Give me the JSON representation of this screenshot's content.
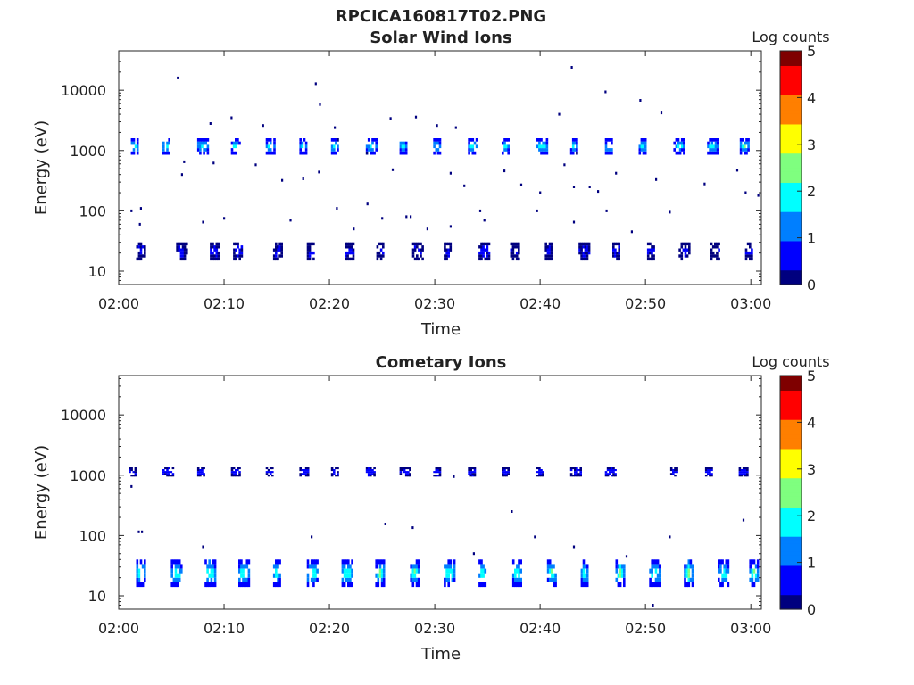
{
  "figure_title": "RPCICA160817T02.PNG",
  "colormap": [
    "#00007f",
    "#0000ff",
    "#007fff",
    "#00ffff",
    "#7fff7f",
    "#ffff00",
    "#ff7f00",
    "#ff0000",
    "#7f0000"
  ],
  "chart_data": [
    {
      "type": "heatmap",
      "title": "Solar Wind Ions",
      "xlabel": "Time",
      "ylabel": "Energy (eV)",
      "y_scale": "log",
      "xlim": [
        "02:00",
        "03:01"
      ],
      "ylim": [
        6,
        45000
      ],
      "x_ticks": [
        "02:00",
        "02:10",
        "02:20",
        "02:30",
        "02:40",
        "02:50",
        "03:00"
      ],
      "y_ticks": [
        "10",
        "100",
        "1000",
        "10000"
      ],
      "colorbar": {
        "label": "Log counts",
        "ticks": [
          "0",
          "1",
          "2",
          "3",
          "4",
          "5"
        ],
        "range": [
          0,
          5
        ]
      },
      "main_band": {
        "energy_range_eV": [
          850,
          1600
        ],
        "times": [
          "02:01.5",
          "02:04.5",
          "02:07.8",
          "02:11.0",
          "02:14.3",
          "02:17.5",
          "02:20.5",
          "02:23.8",
          "02:27.0",
          "02:30.2",
          "02:33.5",
          "02:36.7",
          "02:40.0",
          "02:43.2",
          "02:46.5",
          "02:49.7",
          "02:53.0",
          "02:56.2",
          "02:59.3"
        ],
        "peak_log_counts": [
          2.2,
          2.1,
          2.2,
          2.0,
          2.0,
          1.9,
          2.0,
          2.0,
          2.2,
          2.1,
          2.0,
          2.0,
          2.1,
          2.0,
          2.1,
          2.3,
          2.0,
          2.1,
          2.2
        ]
      },
      "low_band": {
        "energy_range_eV": [
          15,
          30
        ],
        "times": [
          "02:02.0",
          "02:05.8",
          "02:09.0",
          "02:11.2",
          "02:15.0",
          "02:18.2",
          "02:21.8",
          "02:24.8",
          "02:28.2",
          "02:31.2",
          "02:34.5",
          "02:37.5",
          "02:40.8",
          "02:44.0",
          "02:47.2",
          "02:50.5",
          "02:53.5",
          "02:56.5",
          "02:59.8"
        ],
        "peak_log_counts": [
          0.5,
          0.5,
          0.4,
          0.6,
          0.5,
          0.4,
          0.5,
          0.5,
          0.5,
          0.5,
          0.5,
          0.4,
          0.5,
          0.5,
          0.5,
          0.5,
          0.5,
          0.4,
          0.5
        ]
      },
      "scatter_points": [
        {
          "t": "02:05.6",
          "e": 16000
        },
        {
          "t": "02:18.7",
          "e": 12800
        },
        {
          "t": "02:19.1",
          "e": 5800
        },
        {
          "t": "02:43.0",
          "e": 24000
        },
        {
          "t": "02:46.2",
          "e": 9400
        },
        {
          "t": "02:49.5",
          "e": 6800
        },
        {
          "t": "02:51.5",
          "e": 4200
        },
        {
          "t": "02:41.8",
          "e": 4000
        },
        {
          "t": "02:10.7",
          "e": 3500
        },
        {
          "t": "02:08.7",
          "e": 2800
        },
        {
          "t": "02:25.8",
          "e": 3400
        },
        {
          "t": "02:28.2",
          "e": 3600
        },
        {
          "t": "02:20.5",
          "e": 2400
        },
        {
          "t": "02:30.2",
          "e": 2600
        },
        {
          "t": "02:32.0",
          "e": 2400
        },
        {
          "t": "02:13.7",
          "e": 2600
        },
        {
          "t": "02:06.2",
          "e": 650
        },
        {
          "t": "02:06.0",
          "e": 400
        },
        {
          "t": "02:09.0",
          "e": 620
        },
        {
          "t": "02:13.0",
          "e": 580
        },
        {
          "t": "02:15.5",
          "e": 320
        },
        {
          "t": "02:17.5",
          "e": 340
        },
        {
          "t": "02:19.0",
          "e": 440
        },
        {
          "t": "02:26.0",
          "e": 480
        },
        {
          "t": "02:31.5",
          "e": 420
        },
        {
          "t": "02:32.8",
          "e": 260
        },
        {
          "t": "02:36.6",
          "e": 460
        },
        {
          "t": "02:38.2",
          "e": 270
        },
        {
          "t": "02:40.0",
          "e": 200
        },
        {
          "t": "02:42.3",
          "e": 580
        },
        {
          "t": "02:43.2",
          "e": 250
        },
        {
          "t": "02:44.7",
          "e": 250
        },
        {
          "t": "02:45.5",
          "e": 210
        },
        {
          "t": "02:47.2",
          "e": 420
        },
        {
          "t": "02:51.0",
          "e": 330
        },
        {
          "t": "02:55.6",
          "e": 280
        },
        {
          "t": "02:58.7",
          "e": 470
        },
        {
          "t": "02:59.5",
          "e": 200
        },
        {
          "t": "03:00.7",
          "e": 180
        },
        {
          "t": "02:01.2",
          "e": 100
        },
        {
          "t": "02:02.1",
          "e": 110
        },
        {
          "t": "02:02.0",
          "e": 60
        },
        {
          "t": "02:08.0",
          "e": 65
        },
        {
          "t": "02:10.0",
          "e": 75
        },
        {
          "t": "02:16.3",
          "e": 70
        },
        {
          "t": "02:20.7",
          "e": 110
        },
        {
          "t": "02:22.3",
          "e": 50
        },
        {
          "t": "02:23.6",
          "e": 130
        },
        {
          "t": "02:25.0",
          "e": 75
        },
        {
          "t": "02:27.3",
          "e": 80
        },
        {
          "t": "02:27.7",
          "e": 80
        },
        {
          "t": "02:29.3",
          "e": 50
        },
        {
          "t": "02:31.5",
          "e": 55
        },
        {
          "t": "02:34.3",
          "e": 100
        },
        {
          "t": "02:34.7",
          "e": 70
        },
        {
          "t": "02:39.7",
          "e": 100
        },
        {
          "t": "02:43.2",
          "e": 65
        },
        {
          "t": "02:46.3",
          "e": 100
        },
        {
          "t": "02:52.3",
          "e": 95
        },
        {
          "t": "02:48.7",
          "e": 45
        }
      ]
    },
    {
      "type": "heatmap",
      "title": "Cometary Ions",
      "xlabel": "Time",
      "ylabel": "Energy (eV)",
      "y_scale": "log",
      "xlim": [
        "02:00",
        "03:01"
      ],
      "ylim": [
        6,
        45000
      ],
      "x_ticks": [
        "02:00",
        "02:10",
        "02:20",
        "02:30",
        "02:40",
        "02:50",
        "03:00"
      ],
      "y_ticks": [
        "10",
        "100",
        "1000",
        "10000"
      ],
      "colorbar": {
        "label": "Log counts",
        "ticks": [
          "0",
          "1",
          "2",
          "3",
          "4",
          "5"
        ],
        "range": [
          0,
          5
        ]
      },
      "main_band": {
        "energy_range_eV": [
          950,
          1350
        ],
        "times": [
          "02:01.3",
          "02:04.5",
          "02:07.8",
          "02:11.0",
          "02:14.3",
          "02:17.5",
          "02:20.5",
          "02:23.8",
          "02:27.0",
          "02:30.2",
          "02:33.5",
          "02:36.7",
          "02:40.0",
          "02:43.2",
          "02:46.5",
          "02:52.7",
          "02:56.0",
          "02:59.2"
        ],
        "peak_log_counts": [
          0.7,
          0.8,
          0.8,
          0.7,
          0.7,
          0.7,
          0.6,
          0.8,
          0.7,
          0.8,
          0.6,
          0.6,
          0.8,
          0.7,
          0.8,
          0.7,
          0.8,
          0.8
        ]
      },
      "low_band": {
        "energy_range_eV": [
          14,
          40
        ],
        "times": [
          "02:02.0",
          "02:05.3",
          "02:08.5",
          "02:11.7",
          "02:15.0",
          "02:18.2",
          "02:21.5",
          "02:24.7",
          "02:28.0",
          "02:31.2",
          "02:34.5",
          "02:37.7",
          "02:41.0",
          "02:44.2",
          "02:47.5",
          "02:50.7",
          "02:54.0",
          "02:57.2",
          "03:00.2"
        ],
        "peak_log_counts": [
          2.6,
          2.5,
          2.6,
          2.5,
          2.4,
          2.6,
          2.5,
          2.7,
          2.5,
          2.6,
          2.5,
          2.4,
          2.6,
          2.5,
          2.6,
          2.5,
          2.6,
          2.4,
          2.6
        ]
      },
      "scatter_points": [
        {
          "t": "02:01.2",
          "e": 650
        },
        {
          "t": "02:01.9",
          "e": 115
        },
        {
          "t": "02:02.2",
          "e": 115
        },
        {
          "t": "02:08.0",
          "e": 65
        },
        {
          "t": "02:18.3",
          "e": 95
        },
        {
          "t": "02:25.3",
          "e": 155
        },
        {
          "t": "02:27.9",
          "e": 135
        },
        {
          "t": "02:37.3",
          "e": 250
        },
        {
          "t": "02:39.5",
          "e": 95
        },
        {
          "t": "02:43.2",
          "e": 65
        },
        {
          "t": "02:52.3",
          "e": 95
        },
        {
          "t": "02:59.3",
          "e": 180
        },
        {
          "t": "02:33.7",
          "e": 50
        },
        {
          "t": "02:48.2",
          "e": 45
        },
        {
          "t": "02:31.8",
          "e": 950
        },
        {
          "t": "02:50.7",
          "e": 7
        }
      ]
    }
  ]
}
